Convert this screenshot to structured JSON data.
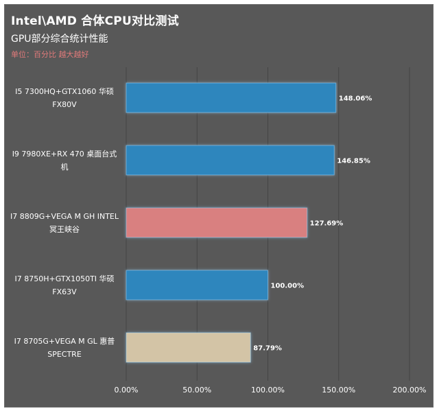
{
  "chart_data": {
    "type": "bar",
    "orientation": "horizontal",
    "title": "Intel\\AMD 合体CPU对比测试",
    "subtitle": "GPU部分综合统计性能",
    "note": "单位：百分比 越大越好",
    "categories": [
      "I5 7300HQ+GTX1060 华硕 FX80V",
      "I9 7980XE+RX 470 桌面台式机",
      "I7 8809G+VEGA M GH INTEL 冥王峡谷",
      "I7 8750H+GTX1050TI 华硕 FX63V",
      "I7 8705G+VEGA M GL 惠普 SPECTRE"
    ],
    "values": [
      148.06,
      146.85,
      127.69,
      100.0,
      87.79
    ],
    "value_labels": [
      "148.06%",
      "146.85%",
      "127.69%",
      "100.00%",
      "87.79%"
    ],
    "bar_colors": [
      "#2f86bd",
      "#2f86bd",
      "#d98080",
      "#2f86bd",
      "#d3c4a6"
    ],
    "xlim": [
      0,
      200
    ],
    "xticks": [
      0,
      50,
      100,
      150,
      200
    ],
    "xtick_labels": [
      "0.00%",
      "50.00%",
      "100.00%",
      "150.00%",
      "200.00%"
    ],
    "grid": "vertical",
    "legend": "none"
  },
  "colors": {
    "background": "#585858",
    "gridline": "#444444",
    "text": "#ffffff",
    "note": "#e07a7a"
  }
}
